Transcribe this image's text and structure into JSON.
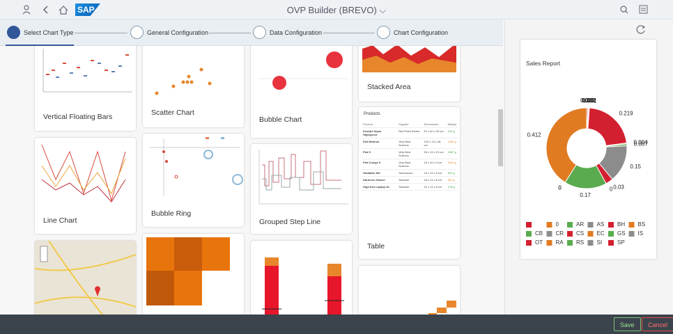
{
  "header": {
    "logo": "SAP",
    "title": "OVP Builder (BREVO)"
  },
  "steps": [
    "Select Chart Type",
    "General Configuration",
    "Data Configuration",
    "Chart Configuration"
  ],
  "gallery": {
    "cards": [
      "Vertical Floating Bars",
      "Scatter Chart",
      "Bubble Chart",
      "Stacked Area",
      "Line Chart",
      "Bubble Ring",
      "Grouped Step Line",
      "Table"
    ],
    "table": {
      "title": "Products",
      "columns": [
        "Product",
        "Supplier",
        "Dimensions",
        "Weight"
      ],
      "rows": [
        [
          "Deskjet Super Highspeed",
          "Red Point Stores",
          "87 x 40 x 39 cm",
          "109 g"
        ],
        [
          "Flat Medium",
          "Very Best Screens",
          "102 x 13 x 36 cm",
          "1430 g"
        ],
        [
          "Flat S",
          "Very Best Screens",
          "95 x 13 x 23 cm",
          "1387 g"
        ],
        [
          "Flat X-large II",
          "Very Best Screens",
          "19 x 10 x 3 cm",
          "3100 g"
        ],
        [
          "Gladiator MX",
          "Technocom",
          "24 x 13 x 5 cm",
          "521 g"
        ],
        [
          "Hardcore Hacker",
          "Titanium",
          "34 x 14 x 6 cm",
          "691 g"
        ],
        [
          "High End Laptop 2b",
          "Titanium",
          "31 x 14 x 6 cm",
          "175 g"
        ]
      ]
    }
  },
  "chart_data": {
    "type": "pie",
    "title": "Sales Report",
    "donut": true,
    "legend": "bottom",
    "categories": [
      null,
      "0",
      "AR",
      "AS",
      "BH",
      "BS",
      "CB",
      "CR",
      "CS",
      "EC",
      "GS",
      "IS",
      "OT",
      "RA",
      "RS",
      "SI",
      "SP"
    ],
    "values": [
      0.005,
      0.003,
      0.002,
      0.001,
      0.219,
      0.004,
      0.007,
      0.15,
      0.03,
      0,
      0.17,
      0,
      0,
      0.412,
      0,
      0,
      0
    ],
    "colors": [
      "#d32030",
      "#e17b22",
      "#5aab4f",
      "#8c8c8c",
      "#d32030",
      "#e17b22",
      "#5aab4f",
      "#8c8c8c",
      "#d32030",
      "#e17b22",
      "#5aab4f",
      "#8c8c8c",
      "#d32030",
      "#e17b22",
      "#5aab4f",
      "#8c8c8c",
      "#d32030"
    ]
  },
  "footer": {
    "save": "Save",
    "cancel": "Cancel"
  }
}
